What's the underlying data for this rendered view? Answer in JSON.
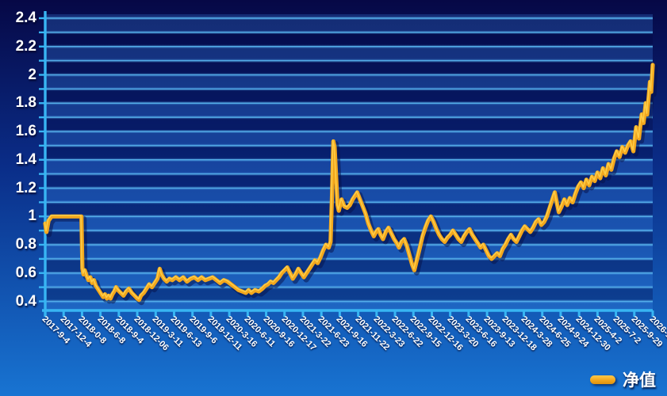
{
  "chart_data": {
    "type": "line",
    "title": "",
    "xlabel": "",
    "ylabel": "",
    "grid": true,
    "legend_position": "bottom-right",
    "y_axis": {
      "min": 0.4,
      "max": 2.4,
      "major_step": 0.2,
      "minor_step": 0.1,
      "tick_labels": [
        "0.4",
        "0.6",
        "0.8",
        "1",
        "1.2",
        "1.4",
        "1.6",
        "1.8",
        "2",
        "2.2",
        "2.4"
      ]
    },
    "x_axis": {
      "tick_labels": [
        "2017-9-4",
        "2017-12-4",
        "2018-0-8",
        "2018-6-8",
        "2018-9-4",
        "2018-12-06",
        "2019-3-11",
        "2019-6-13",
        "2019-9-6",
        "2019-12-11",
        "2020-3-16",
        "2020-6-11",
        "2020-9-16",
        "2020-12-17",
        "2021-3-22",
        "2021-6-23",
        "2021-9-16",
        "2021-11-22",
        "2022-3-23",
        "2022-6-22",
        "2022-9-15",
        "2022-12-16",
        "2023-3-20",
        "2023-6-16",
        "2023-9-13",
        "2023-12-18",
        "2024-3-28",
        "2024-6-25",
        "2024-9-24",
        "2024-12-30",
        "2025-4-2",
        "2025-7-2",
        "2025-9-29",
        "2026-1-5"
      ]
    },
    "series": [
      {
        "name": "净值",
        "color": "#f2a71d",
        "points": [
          [
            0,
            0.95
          ],
          [
            0.07,
            0.89
          ],
          [
            0.18,
            0.97
          ],
          [
            0.35,
            1.0
          ],
          [
            0.8,
            1.0
          ],
          [
            1.3,
            1.0
          ],
          [
            1.7,
            1.0
          ],
          [
            1.97,
            1.0
          ],
          [
            2.02,
            0.63
          ],
          [
            2.08,
            0.59
          ],
          [
            2.15,
            0.62
          ],
          [
            2.25,
            0.58
          ],
          [
            2.35,
            0.55
          ],
          [
            2.45,
            0.57
          ],
          [
            2.55,
            0.53
          ],
          [
            2.65,
            0.55
          ],
          [
            2.75,
            0.51
          ],
          [
            2.85,
            0.49
          ],
          [
            2.95,
            0.47
          ],
          [
            3.05,
            0.45
          ],
          [
            3.15,
            0.43
          ],
          [
            3.25,
            0.45
          ],
          [
            3.35,
            0.42
          ],
          [
            3.45,
            0.44
          ],
          [
            3.55,
            0.42
          ],
          [
            3.65,
            0.45
          ],
          [
            3.75,
            0.47
          ],
          [
            3.85,
            0.5
          ],
          [
            3.95,
            0.48
          ],
          [
            4.1,
            0.46
          ],
          [
            4.25,
            0.44
          ],
          [
            4.4,
            0.47
          ],
          [
            4.55,
            0.49
          ],
          [
            4.7,
            0.46
          ],
          [
            4.85,
            0.44
          ],
          [
            5.0,
            0.42
          ],
          [
            5.1,
            0.41
          ],
          [
            5.2,
            0.44
          ],
          [
            5.35,
            0.46
          ],
          [
            5.5,
            0.49
          ],
          [
            5.65,
            0.52
          ],
          [
            5.8,
            0.5
          ],
          [
            5.95,
            0.53
          ],
          [
            6.1,
            0.56
          ],
          [
            6.22,
            0.63
          ],
          [
            6.32,
            0.59
          ],
          [
            6.45,
            0.56
          ],
          [
            6.6,
            0.54
          ],
          [
            6.75,
            0.56
          ],
          [
            6.9,
            0.55
          ],
          [
            7.1,
            0.57
          ],
          [
            7.3,
            0.55
          ],
          [
            7.5,
            0.57
          ],
          [
            7.7,
            0.54
          ],
          [
            7.9,
            0.56
          ],
          [
            8.1,
            0.57
          ],
          [
            8.3,
            0.55
          ],
          [
            8.5,
            0.57
          ],
          [
            8.7,
            0.55
          ],
          [
            8.9,
            0.56
          ],
          [
            9.1,
            0.57
          ],
          [
            9.3,
            0.55
          ],
          [
            9.5,
            0.53
          ],
          [
            9.7,
            0.55
          ],
          [
            9.9,
            0.54
          ],
          [
            10.1,
            0.52
          ],
          [
            10.3,
            0.5
          ],
          [
            10.5,
            0.48
          ],
          [
            10.7,
            0.47
          ],
          [
            10.9,
            0.46
          ],
          [
            11.05,
            0.48
          ],
          [
            11.2,
            0.46
          ],
          [
            11.4,
            0.48
          ],
          [
            11.6,
            0.47
          ],
          [
            11.8,
            0.49
          ],
          [
            11.95,
            0.51
          ],
          [
            12.1,
            0.52
          ],
          [
            12.25,
            0.54
          ],
          [
            12.4,
            0.53
          ],
          [
            12.55,
            0.55
          ],
          [
            12.7,
            0.57
          ],
          [
            12.85,
            0.6
          ],
          [
            13.0,
            0.62
          ],
          [
            13.15,
            0.64
          ],
          [
            13.3,
            0.6
          ],
          [
            13.45,
            0.56
          ],
          [
            13.6,
            0.59
          ],
          [
            13.75,
            0.63
          ],
          [
            13.9,
            0.6
          ],
          [
            14.05,
            0.57
          ],
          [
            14.2,
            0.6
          ],
          [
            14.35,
            0.63
          ],
          [
            14.5,
            0.66
          ],
          [
            14.65,
            0.69
          ],
          [
            14.8,
            0.67
          ],
          [
            14.95,
            0.71
          ],
          [
            15.1,
            0.76
          ],
          [
            15.25,
            0.8
          ],
          [
            15.4,
            0.78
          ],
          [
            15.5,
            0.82
          ],
          [
            15.58,
            1.15
          ],
          [
            15.65,
            1.53
          ],
          [
            15.72,
            1.49
          ],
          [
            15.8,
            1.28
          ],
          [
            15.88,
            1.08
          ],
          [
            15.95,
            1.04
          ],
          [
            16.1,
            1.12
          ],
          [
            16.25,
            1.07
          ],
          [
            16.4,
            1.06
          ],
          [
            16.55,
            1.08
          ],
          [
            16.7,
            1.12
          ],
          [
            16.85,
            1.15
          ],
          [
            16.95,
            1.17
          ],
          [
            17.1,
            1.12
          ],
          [
            17.25,
            1.07
          ],
          [
            17.4,
            1.02
          ],
          [
            17.55,
            0.95
          ],
          [
            17.7,
            0.9
          ],
          [
            17.85,
            0.86
          ],
          [
            17.97,
            0.89
          ],
          [
            18.1,
            0.91
          ],
          [
            18.22,
            0.87
          ],
          [
            18.35,
            0.84
          ],
          [
            18.5,
            0.89
          ],
          [
            18.65,
            0.92
          ],
          [
            18.8,
            0.88
          ],
          [
            18.95,
            0.84
          ],
          [
            19.1,
            0.81
          ],
          [
            19.22,
            0.78
          ],
          [
            19.35,
            0.82
          ],
          [
            19.5,
            0.84
          ],
          [
            19.65,
            0.79
          ],
          [
            19.8,
            0.72
          ],
          [
            19.93,
            0.66
          ],
          [
            20.05,
            0.62
          ],
          [
            20.2,
            0.7
          ],
          [
            20.35,
            0.78
          ],
          [
            20.5,
            0.86
          ],
          [
            20.65,
            0.92
          ],
          [
            20.8,
            0.97
          ],
          [
            20.95,
            1.0
          ],
          [
            21.1,
            0.96
          ],
          [
            21.25,
            0.91
          ],
          [
            21.4,
            0.87
          ],
          [
            21.55,
            0.84
          ],
          [
            21.7,
            0.82
          ],
          [
            21.85,
            0.85
          ],
          [
            22.0,
            0.87
          ],
          [
            22.15,
            0.9
          ],
          [
            22.3,
            0.87
          ],
          [
            22.45,
            0.84
          ],
          [
            22.6,
            0.82
          ],
          [
            22.75,
            0.86
          ],
          [
            22.9,
            0.89
          ],
          [
            23.05,
            0.91
          ],
          [
            23.2,
            0.87
          ],
          [
            23.35,
            0.84
          ],
          [
            23.5,
            0.81
          ],
          [
            23.65,
            0.78
          ],
          [
            23.8,
            0.8
          ],
          [
            23.95,
            0.76
          ],
          [
            24.1,
            0.72
          ],
          [
            24.25,
            0.7
          ],
          [
            24.4,
            0.72
          ],
          [
            24.55,
            0.74
          ],
          [
            24.7,
            0.72
          ],
          [
            24.85,
            0.77
          ],
          [
            25.0,
            0.8
          ],
          [
            25.15,
            0.84
          ],
          [
            25.3,
            0.87
          ],
          [
            25.45,
            0.84
          ],
          [
            25.6,
            0.82
          ],
          [
            25.75,
            0.86
          ],
          [
            25.9,
            0.9
          ],
          [
            26.05,
            0.93
          ],
          [
            26.2,
            0.91
          ],
          [
            26.35,
            0.89
          ],
          [
            26.5,
            0.92
          ],
          [
            26.65,
            0.96
          ],
          [
            26.8,
            0.98
          ],
          [
            26.95,
            0.94
          ],
          [
            27.1,
            0.96
          ],
          [
            27.25,
            1.0
          ],
          [
            27.4,
            1.06
          ],
          [
            27.55,
            1.12
          ],
          [
            27.68,
            1.17
          ],
          [
            27.8,
            1.09
          ],
          [
            27.9,
            1.03
          ],
          [
            28.05,
            1.07
          ],
          [
            28.2,
            1.12
          ],
          [
            28.35,
            1.08
          ],
          [
            28.5,
            1.13
          ],
          [
            28.65,
            1.1
          ],
          [
            28.8,
            1.16
          ],
          [
            28.95,
            1.21
          ],
          [
            29.1,
            1.24
          ],
          [
            29.25,
            1.2
          ],
          [
            29.4,
            1.26
          ],
          [
            29.55,
            1.22
          ],
          [
            29.7,
            1.28
          ],
          [
            29.85,
            1.25
          ],
          [
            30.0,
            1.31
          ],
          [
            30.15,
            1.27
          ],
          [
            30.3,
            1.34
          ],
          [
            30.45,
            1.29
          ],
          [
            30.6,
            1.37
          ],
          [
            30.75,
            1.33
          ],
          [
            30.9,
            1.41
          ],
          [
            31.05,
            1.46
          ],
          [
            31.2,
            1.42
          ],
          [
            31.35,
            1.49
          ],
          [
            31.5,
            1.45
          ],
          [
            31.65,
            1.5
          ],
          [
            31.8,
            1.53
          ],
          [
            31.95,
            1.46
          ],
          [
            32.1,
            1.63
          ],
          [
            32.25,
            1.55
          ],
          [
            32.4,
            1.72
          ],
          [
            32.5,
            1.66
          ],
          [
            32.62,
            1.8
          ],
          [
            32.7,
            1.72
          ],
          [
            32.85,
            1.95
          ],
          [
            32.92,
            1.88
          ],
          [
            33.0,
            2.07
          ]
        ]
      }
    ]
  },
  "colors": {
    "background_top": "#060846",
    "background_mid": "#0a2d88",
    "background_bottom": "#1874d2",
    "band_light": "rgba(62,140,232,0.26)",
    "band_dark": "rgba(2,8,62,0.30)",
    "gridline": "#54ade9",
    "gridline_glow": "rgba(90,180,245,0.28)",
    "axis": "#38b5f3",
    "line": "#f2a71d",
    "line_highlight": "#ffd24f",
    "line_shadow": "#051048",
    "label_text": "#ffffff"
  }
}
